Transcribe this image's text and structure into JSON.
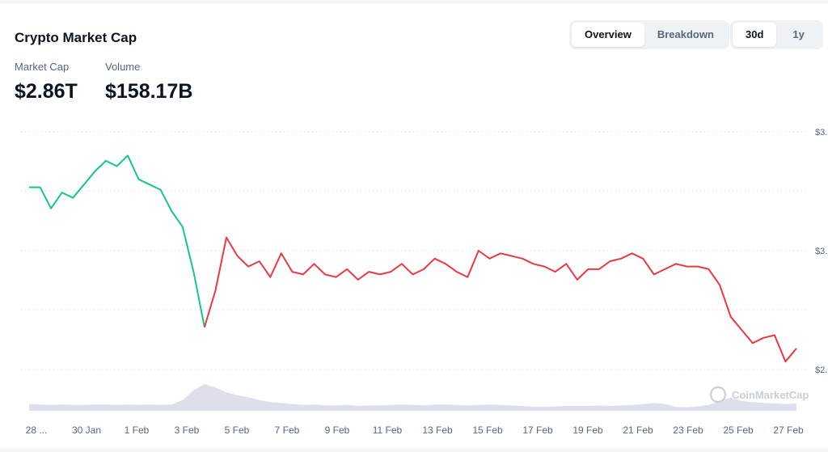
{
  "header": {
    "title": "Crypto Market Cap",
    "view_tabs": [
      {
        "label": "Overview",
        "active": true
      },
      {
        "label": "Breakdown",
        "active": false
      }
    ],
    "range_tabs": [
      {
        "label": "30d",
        "active": true
      },
      {
        "label": "1y",
        "active": false
      }
    ]
  },
  "stats": {
    "market_cap_label": "Market Cap",
    "market_cap_value": "$2.86T",
    "volume_label": "Volume",
    "volume_value": "$158.17B"
  },
  "watermark": "CoinMarketCap",
  "colors": {
    "up": "#16c784",
    "down": "#ea3943",
    "volume": "#d7dbe6"
  },
  "chart_data": {
    "type": "line",
    "x_tick_labels": [
      "28 ...",
      "30 Jan",
      "1 Feb",
      "3 Feb",
      "5 Feb",
      "7 Feb",
      "9 Feb",
      "11 Feb",
      "13 Feb",
      "15 Feb",
      "17 Feb",
      "19 Feb",
      "21 Feb",
      "23 Feb",
      "25 Feb",
      "27 Feb"
    ],
    "y_tick_labels": [
      "$3.",
      "$3.",
      "$2."
    ],
    "series": [
      {
        "values": [
          3.47,
          3.47,
          3.39,
          3.45,
          3.43,
          3.48,
          3.53,
          3.57,
          3.55,
          3.59,
          3.5,
          3.48,
          3.46,
          3.38,
          3.32,
          3.15,
          2.94,
          3.08,
          3.28,
          3.21,
          3.17,
          3.19,
          3.13,
          3.22,
          3.15,
          3.14,
          3.18,
          3.14,
          3.13,
          3.16,
          3.12,
          3.15,
          3.14,
          3.15,
          3.18,
          3.14,
          3.16,
          3.2,
          3.18,
          3.15,
          3.13,
          3.23,
          3.2,
          3.22,
          3.21,
          3.2,
          3.18,
          3.17,
          3.15,
          3.18,
          3.12,
          3.16,
          3.16,
          3.19,
          3.2,
          3.22,
          3.2,
          3.14,
          3.16,
          3.18,
          3.17,
          3.17,
          3.16,
          3.1,
          2.98,
          2.93,
          2.88,
          2.9,
          2.91,
          2.81,
          2.86
        ]
      }
    ],
    "volume": [
      0.14,
      0.13,
      0.12,
      0.13,
      0.12,
      0.12,
      0.13,
      0.13,
      0.12,
      0.13,
      0.12,
      0.13,
      0.12,
      0.13,
      0.22,
      0.42,
      0.55,
      0.48,
      0.38,
      0.32,
      0.28,
      0.22,
      0.18,
      0.16,
      0.14,
      0.12,
      0.13,
      0.11,
      0.11,
      0.12,
      0.1,
      0.11,
      0.11,
      0.12,
      0.13,
      0.12,
      0.11,
      0.13,
      0.13,
      0.12,
      0.11,
      0.12,
      0.13,
      0.12,
      0.11,
      0.1,
      0.08,
      0.08,
      0.09,
      0.1,
      0.1,
      0.1,
      0.11,
      0.1,
      0.11,
      0.12,
      0.14,
      0.16,
      0.14,
      0.08,
      0.07,
      0.09,
      0.12,
      0.2,
      0.27,
      0.2,
      0.18,
      0.16,
      0.15,
      0.14,
      0.15
    ],
    "up_segment_count": 16,
    "ylim": [
      2.78,
      3.68
    ],
    "grid": true
  }
}
